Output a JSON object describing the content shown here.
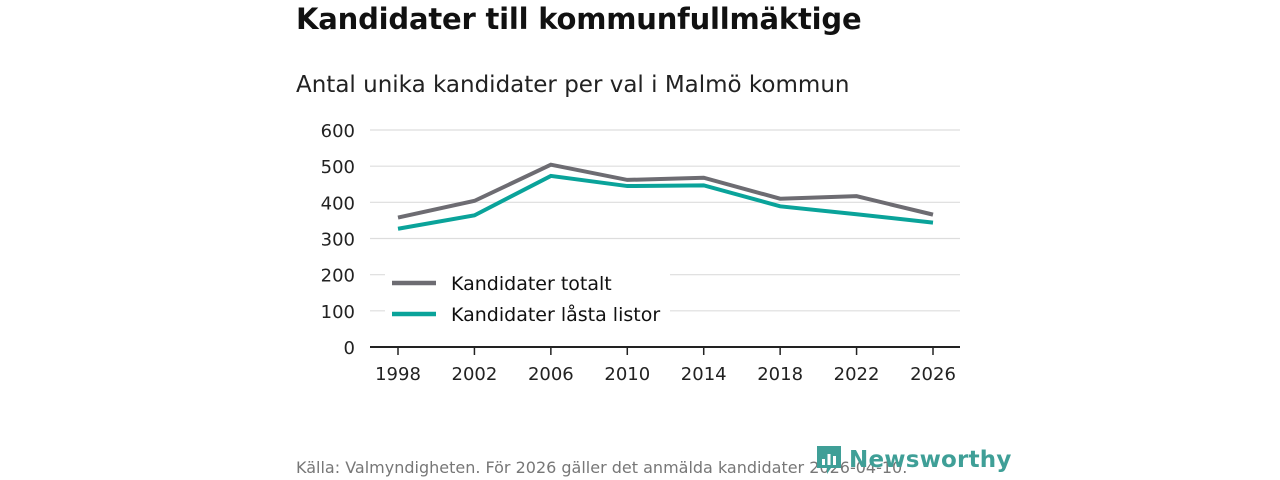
{
  "title": "Kandidater till kommunfullmäktige",
  "subtitle": "Antal unika kandidater per val i Malmö kommun",
  "source": "Källa: Valmyndigheten. För 2026 gäller det anmälda kandidater 2026-04-10.",
  "brand": {
    "name": "Newsworthy",
    "icon": "newsworthy-logo-icon",
    "color": "#3f9f97"
  },
  "chart_data": {
    "type": "line",
    "title": "Kandidater till kommunfullmäktige",
    "subtitle": "Antal unika kandidater per val i Malmö kommun",
    "xlabel": "",
    "ylabel": "",
    "categories": [
      "1998",
      "2002",
      "2006",
      "2010",
      "2014",
      "2018",
      "2022",
      "2026"
    ],
    "ylim": [
      0,
      600
    ],
    "yticks": [
      "0",
      "100",
      "200",
      "300",
      "400",
      "500",
      "600"
    ],
    "grid": true,
    "legend_position": "bottom-left",
    "series": [
      {
        "name": "Kandidater totalt",
        "color": "#6d6c72",
        "values": [
          358,
          404,
          504,
          462,
          468,
          410,
          417,
          366
        ]
      },
      {
        "name": "Kandidater låsta listor",
        "color": "#0aa39a",
        "values": [
          327,
          364,
          473,
          445,
          447,
          389,
          367,
          344
        ]
      }
    ]
  }
}
